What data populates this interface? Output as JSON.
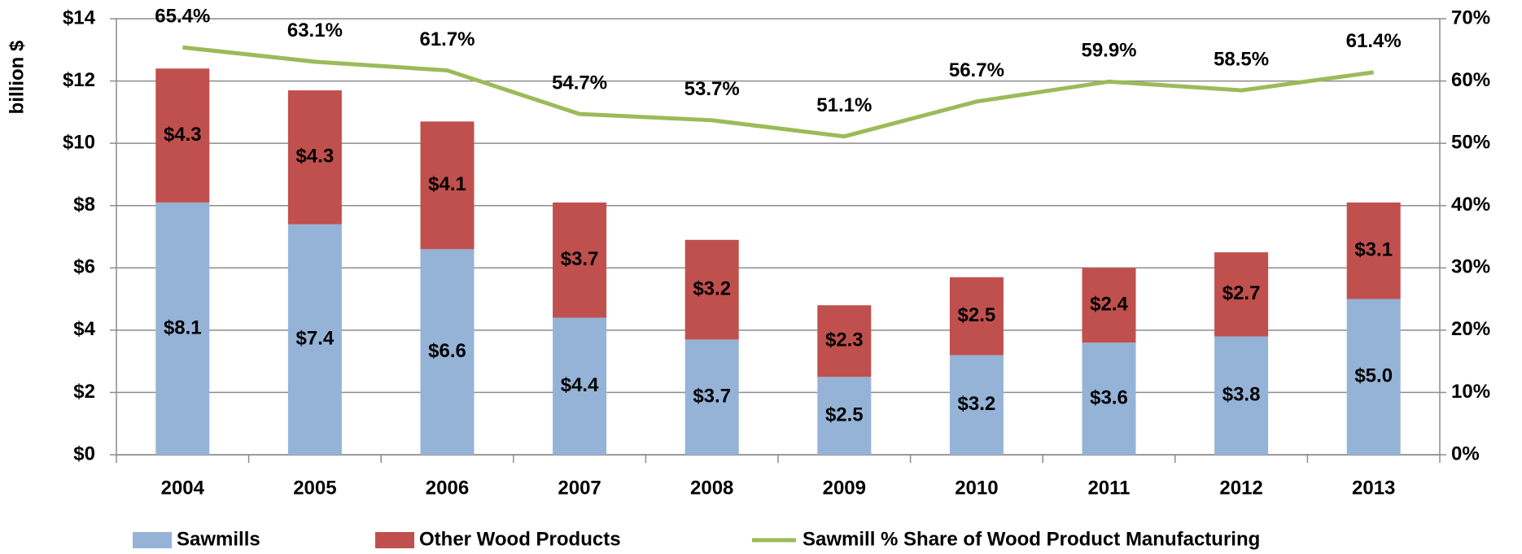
{
  "chart_data": {
    "type": "bar",
    "stacked": true,
    "y_label": "billion $",
    "categories": [
      "2004",
      "2005",
      "2006",
      "2007",
      "2008",
      "2009",
      "2010",
      "2011",
      "2012",
      "2013"
    ],
    "series": [
      {
        "name": "Sawmills",
        "color": "#95b3d7",
        "values": [
          8.1,
          7.4,
          6.6,
          4.4,
          3.7,
          2.5,
          3.2,
          3.6,
          3.8,
          5.0
        ],
        "value_labels": [
          "$8.1",
          "$7.4",
          "$6.6",
          "$4.4",
          "$3.7",
          "$2.5",
          "$3.2",
          "$3.6",
          "$3.8",
          "$5.0"
        ]
      },
      {
        "name": "Other Wood Products",
        "color": "#c0504d",
        "values": [
          4.3,
          4.3,
          4.1,
          3.7,
          3.2,
          2.3,
          2.5,
          2.4,
          2.7,
          3.1
        ],
        "value_labels": [
          "$4.3",
          "$4.3",
          "$4.1",
          "$3.7",
          "$3.2",
          "$2.3",
          "$2.5",
          "$2.4",
          "$2.7",
          "$3.1"
        ]
      },
      {
        "name": "Sawmill % Share of Wood Product Manufacturing",
        "type": "line",
        "axis": "y2",
        "color": "#9bbb59",
        "values": [
          65.4,
          63.1,
          61.7,
          54.7,
          53.7,
          51.1,
          56.7,
          59.9,
          58.5,
          61.4
        ],
        "value_labels": [
          "65.4%",
          "63.1%",
          "61.7%",
          "54.7%",
          "53.7%",
          "51.1%",
          "56.7%",
          "59.9%",
          "58.5%",
          "61.4%"
        ]
      }
    ],
    "ylim": [
      0,
      14
    ],
    "yticks": [
      {
        "value": 0,
        "label": "$0"
      },
      {
        "value": 2,
        "label": "$2"
      },
      {
        "value": 4,
        "label": "$4"
      },
      {
        "value": 6,
        "label": "$6"
      },
      {
        "value": 8,
        "label": "$8"
      },
      {
        "value": 10,
        "label": "$10"
      },
      {
        "value": 12,
        "label": "$12"
      },
      {
        "value": 14,
        "label": "$14"
      }
    ],
    "y2lim": [
      0,
      70
    ],
    "y2ticks": [
      {
        "value": 0,
        "label": "0%"
      },
      {
        "value": 10,
        "label": "10%"
      },
      {
        "value": 20,
        "label": "20%"
      },
      {
        "value": 30,
        "label": "30%"
      },
      {
        "value": 40,
        "label": "40%"
      },
      {
        "value": 50,
        "label": "50%"
      },
      {
        "value": 60,
        "label": "60%"
      },
      {
        "value": 70,
        "label": "70%"
      }
    ],
    "grid": true,
    "legend": "bottom"
  }
}
